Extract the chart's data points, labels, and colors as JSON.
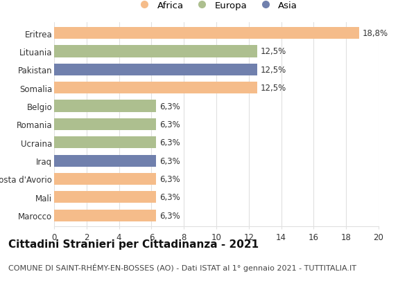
{
  "categories": [
    "Eritrea",
    "Lituania",
    "Pakistan",
    "Somalia",
    "Belgio",
    "Romania",
    "Ucraina",
    "Iraq",
    "Costa d'Avorio",
    "Mali",
    "Marocco"
  ],
  "values": [
    18.8,
    12.5,
    12.5,
    12.5,
    6.3,
    6.3,
    6.3,
    6.3,
    6.3,
    6.3,
    6.3
  ],
  "labels": [
    "18,8%",
    "12,5%",
    "12,5%",
    "12,5%",
    "6,3%",
    "6,3%",
    "6,3%",
    "6,3%",
    "6,3%",
    "6,3%",
    "6,3%"
  ],
  "colors": [
    "#F5BC8A",
    "#ADBF8F",
    "#7080AD",
    "#F5BC8A",
    "#ADBF8F",
    "#ADBF8F",
    "#ADBF8F",
    "#7080AD",
    "#F5BC8A",
    "#F5BC8A",
    "#F5BC8A"
  ],
  "legend_labels": [
    "Africa",
    "Europa",
    "Asia"
  ],
  "legend_colors": [
    "#F5BC8A",
    "#ADBF8F",
    "#7080AD"
  ],
  "title": "Cittadini Stranieri per Cittadinanza - 2021",
  "subtitle": "COMUNE DI SAINT-RHÉMY-EN-BOSSES (AO) - Dati ISTAT al 1° gennaio 2021 - TUTTITALIA.IT",
  "xlim": [
    0,
    20
  ],
  "xticks": [
    0,
    2,
    4,
    6,
    8,
    10,
    12,
    14,
    16,
    18,
    20
  ],
  "background_color": "#ffffff",
  "bar_height": 0.65,
  "title_fontsize": 11,
  "subtitle_fontsize": 8,
  "tick_fontsize": 8.5,
  "label_fontsize": 8.5,
  "legend_fontsize": 9.5,
  "grid_color": "#e0e0e0"
}
